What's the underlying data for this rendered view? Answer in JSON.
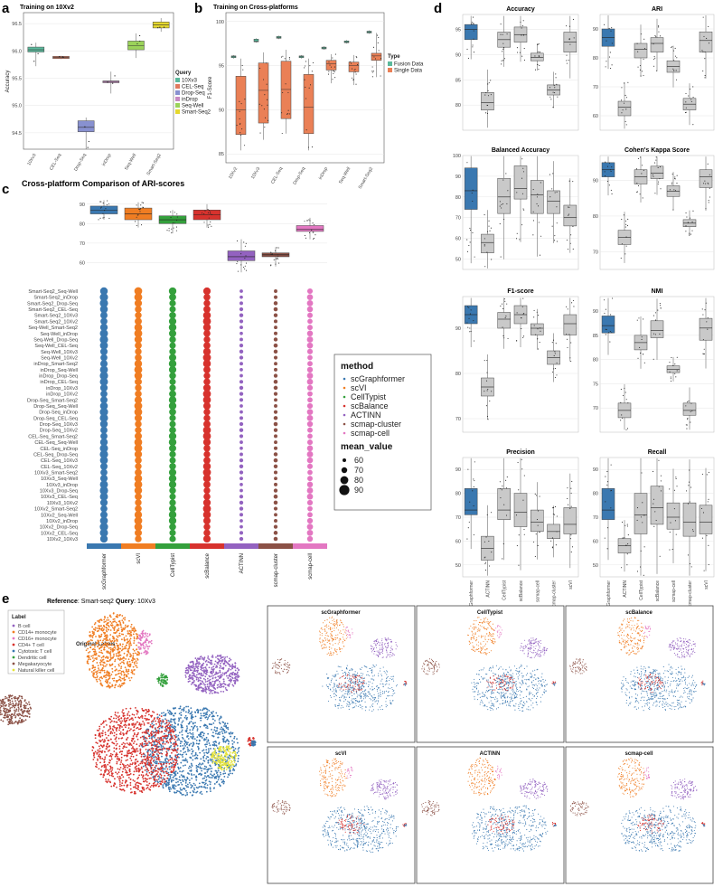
{
  "panels": {
    "a": {
      "letter": "a",
      "title": "Training on 10Xv2",
      "ylabel": "Accuracy",
      "legend_title": "Query"
    },
    "b": {
      "letter": "b",
      "title": "Training on Cross-platforms",
      "ylabel": "F1-Score",
      "legend_title": "Type",
      "legend": [
        "Fusion Data",
        "Single Data"
      ]
    },
    "c": {
      "letter": "c",
      "title": "Cross-platform Comparison of ARI-scores",
      "legend_method_title": "method",
      "legend_size_title": "mean_value",
      "size_values": [
        "60",
        "70",
        "80",
        "90"
      ]
    },
    "d": {
      "letter": "d"
    },
    "e": {
      "letter": "e",
      "reference_label": "Reference",
      "reference_value": "Smart-seq2",
      "query_label": "Query",
      "query_value": "10Xv3",
      "legend_title": "Label",
      "original_title": "Original Labels"
    }
  },
  "colors": {
    "blue": "#3a78b0",
    "orange": "#f07d22",
    "green": "#34a03c",
    "red": "#d7322d",
    "purple": "#9362c0",
    "brown": "#8b5146",
    "pink": "#e377c2",
    "grey": "#c9c9c9",
    "salmon": "#ea8056",
    "teal": "#5bb99c"
  },
  "chart_data": [
    {
      "id": "a",
      "type": "box",
      "title": "Training on 10Xv2",
      "ylabel": "Accuracy",
      "ylim": [
        94.2,
        96.7
      ],
      "yticks": [
        94.5,
        95.0,
        95.5,
        96.0,
        96.5
      ],
      "categories": [
        "10Xv3",
        "CEL-Seq",
        "Drop-Seq",
        "inDrop",
        "Seq-Well",
        "Smart-Seq2"
      ],
      "colors": [
        "#5bb99c",
        "#e07a5f",
        "#8891d0",
        "#c789c3",
        "#9bd35a",
        "#e5d82d"
      ],
      "q1": [
        95.98,
        95.86,
        94.52,
        95.44,
        96.02,
        96.42
      ],
      "median": [
        96.02,
        95.88,
        94.6,
        95.44,
        96.1,
        96.48
      ],
      "q3": [
        96.07,
        95.9,
        94.72,
        95.45,
        96.18,
        96.53
      ],
      "min": [
        95.72,
        95.85,
        94.2,
        95.22,
        95.87,
        96.35
      ],
      "max": [
        96.15,
        95.91,
        94.78,
        95.62,
        96.32,
        96.6
      ],
      "legend_title": "Query"
    },
    {
      "id": "b",
      "type": "box",
      "title": "Training on Cross-platforms",
      "ylabel": "F1-Score",
      "ylim": [
        84,
        101
      ],
      "yticks": [
        85,
        90,
        95,
        100
      ],
      "categories": [
        "10Xv2",
        "10Xv3",
        "CEL-Seq",
        "Drop-Seq",
        "inDrop",
        "Seq-Well",
        "Smart-Seq2"
      ],
      "series": [
        {
          "name": "Fusion Data",
          "median": [
            96,
            97.8,
            98.2,
            96,
            97,
            97.7,
            98.8
          ],
          "q1": [
            95.9,
            97.7,
            98.1,
            95.9,
            96.9,
            97.6,
            98.7
          ],
          "q3": [
            96.1,
            98,
            98.3,
            96.1,
            97.1,
            97.8,
            98.9
          ],
          "min": [
            95.8,
            97.6,
            98,
            95.8,
            96.8,
            97.5,
            98.6
          ],
          "max": [
            96.2,
            98.1,
            98.4,
            96.2,
            97.2,
            97.9,
            99
          ]
        },
        {
          "name": "Single Data",
          "median": [
            90,
            92.2,
            92.3,
            90.3,
            95.2,
            95,
            96.1
          ],
          "q1": [
            87.2,
            88.5,
            89,
            87.3,
            94.5,
            94.3,
            95.6
          ],
          "q3": [
            93.8,
            95.3,
            95.5,
            94,
            95.6,
            95.4,
            96.4
          ],
          "min": [
            85.4,
            86.6,
            87.3,
            85.4,
            93,
            92.8,
            93.7
          ],
          "max": [
            95.8,
            96.5,
            96.8,
            95.8,
            96.3,
            96.2,
            98.7
          ]
        }
      ],
      "legend_title": "Type"
    },
    {
      "id": "c",
      "type": "bubble+box",
      "title": "Cross-platform Comparison of ARI-scores",
      "methods": [
        "scGraphformer",
        "scVI",
        "CellTypist",
        "scBalance",
        "ACTINN",
        "scmap-cluster",
        "scmap-cell"
      ],
      "colors": [
        "#3a78b0",
        "#f07d22",
        "#34a03c",
        "#d7322d",
        "#9362c0",
        "#8b5146",
        "#e377c2"
      ],
      "box_ylim": [
        50,
        95
      ],
      "box_yticks": [
        60,
        70,
        80,
        90
      ],
      "median": [
        87,
        85,
        82,
        84.5,
        63,
        64,
        77
      ],
      "q1": [
        85,
        82,
        80,
        82,
        61,
        63,
        76
      ],
      "q3": [
        89,
        88,
        84,
        87,
        66,
        65,
        79
      ],
      "min": [
        82,
        78,
        75,
        78,
        55,
        58,
        72
      ],
      "max": [
        92,
        91,
        87,
        90,
        72,
        68,
        83
      ],
      "rows": [
        "Smart-Seq2_Seq-Well",
        "Smart-Seq2_inDrop",
        "Smart-Seq2_Drop-Seq",
        "Smart-Seq2_CEL-Seq",
        "Smart-Seq2_10Xv3",
        "Smart-Seq2_10Xv2",
        "Seq-Well_Smart-Seq2",
        "Seq-Well_inDrop",
        "Seq-Well_Drop-Seq",
        "Seq-Well_CEL-Seq",
        "Seq-Well_10Xv3",
        "Seq-Well_10Xv2",
        "inDrop_Smart-Seq2",
        "inDrop_Seq-Well",
        "inDrop_Drop-Seq",
        "inDrop_CEL-Seq",
        "inDrop_10Xv3",
        "inDrop_10Xv2",
        "Drop-Seq_Smart-Seq2",
        "Drop-Seq_Seq-Well",
        "Drop-Seq_inDrop",
        "Drop-Seq_CEL-Seq",
        "Drop-Seq_10Xv3",
        "Drop-Seq_10Xv2",
        "CEL-Seq_Smart-Seq2",
        "CEL-Seq_Seq-Well",
        "CEL-Seq_inDrop",
        "CEL-Seq_Drop-Seq",
        "CEL-Seq_10Xv3",
        "CEL-Seq_10Xv2",
        "10Xv3_Smart-Seq2",
        "10Xv3_Seq-Well",
        "10Xv3_inDrop",
        "10Xv3_Drop-Seq",
        "10Xv3_CEL-Seq",
        "10Xv3_10Xv2",
        "10Xv2_Smart-Seq2",
        "10Xv2_Seq-Well",
        "10Xv2_inDrop",
        "10Xv2_Drop-Seq",
        "10Xv2_CEL-Seq",
        "10Xv2_10Xv3"
      ],
      "legend_method_title": "method",
      "legend_size_title": "mean_value"
    },
    {
      "id": "d",
      "type": "box-grid",
      "methods": [
        "scGraphformer",
        "ACTINN",
        "CellTypist",
        "scBalance",
        "scmap-cell",
        "scmap-cluster",
        "scVI"
      ],
      "panels": [
        {
          "title": "Accuracy",
          "ylim": [
            75,
            98
          ],
          "yticks": [
            80,
            85,
            90,
            95
          ],
          "median": [
            95,
            80.5,
            93,
            94,
            89.5,
            83,
            92.5
          ],
          "q1": [
            93,
            79,
            91.5,
            92.5,
            88.8,
            82,
            90.5
          ],
          "q3": [
            96,
            82.5,
            94.5,
            95.5,
            90.3,
            84,
            94.5
          ]
        },
        {
          "title": "ARI",
          "ylim": [
            55,
            95
          ],
          "yticks": [
            60,
            70,
            80,
            90
          ],
          "median": [
            87,
            63,
            83,
            85,
            77,
            64,
            86
          ],
          "q1": [
            84,
            60,
            80,
            82,
            75,
            62,
            82
          ],
          "q3": [
            90,
            65,
            85,
            87,
            79,
            66,
            89
          ]
        },
        {
          "title": "Balanced Accuracy",
          "ylim": [
            45,
            100
          ],
          "yticks": [
            50,
            60,
            70,
            80,
            90,
            100
          ],
          "median": [
            83,
            58,
            80,
            84,
            81,
            78,
            70
          ],
          "q1": [
            74,
            53,
            72,
            79,
            72,
            72,
            66
          ],
          "q3": [
            94,
            62,
            89,
            95,
            88,
            83,
            76
          ]
        },
        {
          "title": "Cohen's Kappa Score",
          "ylim": [
            65,
            97
          ],
          "yticks": [
            70,
            80,
            90
          ],
          "median": [
            93,
            74,
            91,
            92,
            87,
            78,
            91
          ],
          "q1": [
            91,
            72,
            89,
            90.5,
            85.5,
            77,
            88
          ],
          "q3": [
            95,
            76,
            93,
            94,
            88.5,
            79,
            93
          ]
        },
        {
          "title": "F1-score",
          "ylim": [
            67,
            97
          ],
          "yticks": [
            70,
            80,
            90
          ],
          "median": [
            93,
            77,
            92,
            93,
            90,
            83.5,
            91
          ],
          "q1": [
            91,
            75,
            90,
            91,
            88.5,
            82,
            88.5
          ],
          "q3": [
            95,
            79,
            93.5,
            95,
            91,
            85,
            93
          ]
        },
        {
          "title": "NMI",
          "ylim": [
            65,
            93
          ],
          "yticks": [
            70,
            75,
            80,
            85,
            90
          ],
          "median": [
            87,
            69.5,
            83.5,
            86,
            78,
            69.5,
            86.5
          ],
          "q1": [
            85.5,
            68,
            82,
            84.5,
            77.3,
            68.5,
            84
          ],
          "q3": [
            89,
            71,
            85,
            88,
            78.7,
            71,
            88.5
          ]
        },
        {
          "title": "Precision",
          "ylim": [
            45,
            95
          ],
          "yticks": [
            50,
            60,
            70,
            80,
            90
          ],
          "median": [
            73,
            57,
            73,
            72,
            68,
            64,
            67
          ],
          "q1": [
            71,
            52,
            69,
            66,
            64,
            61,
            63
          ],
          "q3": [
            82,
            62,
            82,
            80,
            73,
            67,
            74
          ]
        },
        {
          "title": "Recall",
          "ylim": [
            45,
            95
          ],
          "yticks": [
            50,
            60,
            70,
            80,
            90
          ],
          "median": [
            73,
            58,
            71,
            74,
            70,
            68,
            68
          ],
          "q1": [
            69,
            55,
            63,
            67,
            65,
            62,
            63
          ],
          "q3": [
            82,
            61,
            80,
            83,
            76,
            76,
            75
          ]
        }
      ]
    }
  ],
  "umap": {
    "labels": [
      "B cell",
      "CD14+ monocyte",
      "CD16+ monocyte",
      "CD4+ T cell",
      "Cytotoxic T cell",
      "Dendritic cell",
      "Megakaryocyte",
      "Natural killer cell"
    ],
    "label_colors": [
      "#9362c0",
      "#f07d22",
      "#e377c2",
      "#d7322d",
      "#3a78b0",
      "#34a03c",
      "#8b5146",
      "#e5e33a"
    ],
    "methods": [
      "scGraphformer",
      "CellTypist",
      "scBalance",
      "scVI",
      "ACTINN",
      "scmap-cell"
    ]
  }
}
